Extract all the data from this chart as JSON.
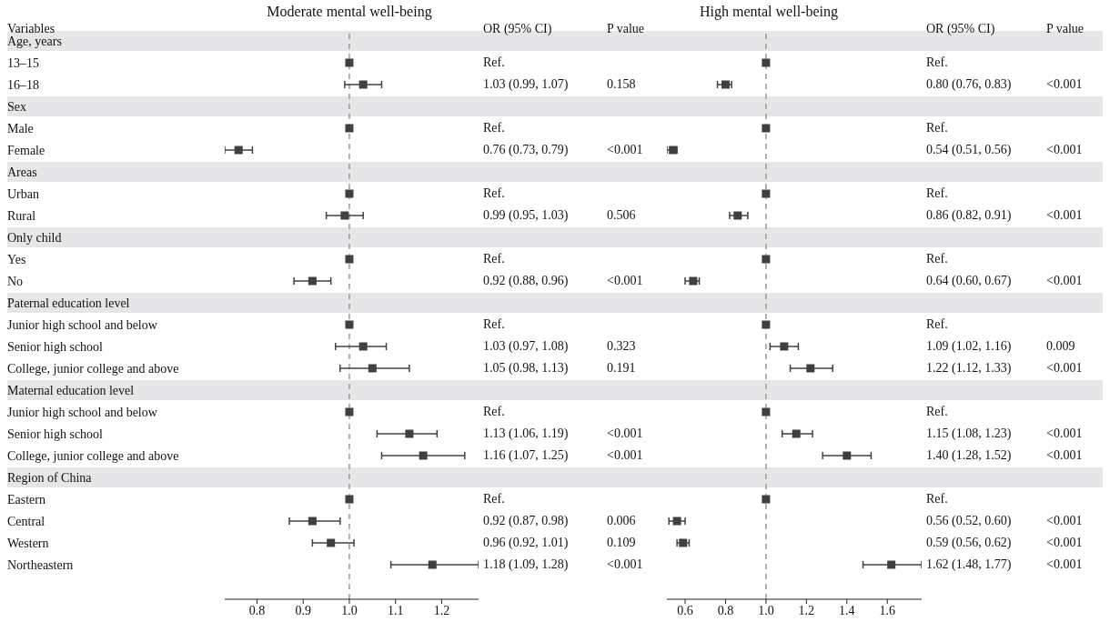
{
  "chart_data": [
    {
      "type": "scatter",
      "orientation": "horizontal",
      "title": "Moderate mental well-being",
      "ylabel": "Variables",
      "marker": "square",
      "categories": [
        "Age, years",
        "13–15",
        "16–18",
        "Sex",
        "Male",
        "Female",
        "Areas",
        "Urban",
        "Rural",
        "Only child",
        "Yes",
        "No",
        "Paternal education level",
        "Junior high school and below",
        "Senior high school",
        "College, junior college and above",
        "Maternal education level",
        "Junior high school and below",
        "Senior high school",
        "College, junior college and above",
        "Region of China",
        "Eastern",
        "Central",
        "Western",
        "Northeastern"
      ],
      "series": [
        {
          "color": "#404040",
          "values": [
            null,
            1,
            1.03,
            null,
            1,
            0.76,
            null,
            1,
            0.99,
            null,
            1,
            0.92,
            null,
            1,
            1.03,
            1.05,
            null,
            1,
            1.13,
            1.16,
            null,
            1,
            0.92,
            0.96,
            1.18
          ],
          "errors": [
            null,
            null,
            [
              0.99,
              1.07
            ],
            null,
            null,
            [
              0.73,
              0.79
            ],
            null,
            null,
            [
              0.95,
              1.03
            ],
            null,
            null,
            [
              0.88,
              0.96
            ],
            null,
            null,
            [
              0.97,
              1.08
            ],
            [
              0.98,
              1.13
            ],
            null,
            null,
            [
              1.06,
              1.19
            ],
            [
              1.07,
              1.25
            ],
            null,
            null,
            [
              0.87,
              0.98
            ],
            [
              0.92,
              1.01
            ],
            [
              1.09,
              1.28
            ]
          ]
        }
      ],
      "xlim": [
        0.73,
        1.28
      ],
      "xticks": [
        0.8,
        0.9,
        {
          "value": 1,
          "label": "1.0"
        },
        1.1,
        1.2
      ],
      "ref_lines": [
        {
          "axis": "x",
          "value": 1,
          "color": "#999999",
          "line_style": "dashed"
        }
      ],
      "annotations": [
        "OR (95% CI)",
        "P value",
        "Ref.",
        "1.03 (0.99, 1.07)",
        "Ref.",
        "0.76 (0.73, 0.79)",
        "Ref.",
        "0.99 (0.95, 1.03)",
        "Ref.",
        "0.92 (0.88, 0.96)",
        "Ref.",
        "1.03 (0.97, 1.08)",
        "1.05 (0.98, 1.13)",
        "Ref.",
        "1.13 (1.06, 1.19)",
        "1.16 (1.07, 1.25)",
        "Ref.",
        "0.92 (0.87, 0.98)",
        "0.96 (0.92, 1.01)",
        "1.18 (1.09, 1.28)",
        "0.158",
        "<0.001",
        "0.506",
        "<0.001",
        "0.323",
        "0.191",
        "<0.001",
        "<0.001",
        "0.006",
        "0.109",
        "<0.001"
      ]
    },
    {
      "type": "scatter",
      "orientation": "horizontal",
      "title": "High mental well-being",
      "marker": "square",
      "tick_labels": "x",
      "series": [
        {
          "color": "#404040",
          "values": [
            null,
            1,
            0.8,
            null,
            1,
            0.54,
            null,
            1,
            0.86,
            null,
            1,
            0.64,
            null,
            1,
            1.09,
            1.22,
            null,
            1,
            1.15,
            1.4,
            null,
            1,
            0.56,
            0.59,
            1.62
          ],
          "errors": [
            null,
            null,
            [
              0.76,
              0.83
            ],
            null,
            null,
            [
              0.51,
              0.56
            ],
            null,
            null,
            [
              0.82,
              0.91
            ],
            null,
            null,
            [
              0.6,
              0.67
            ],
            null,
            null,
            [
              1.02,
              1.16
            ],
            [
              1.12,
              1.33
            ],
            null,
            null,
            [
              1.08,
              1.23
            ],
            [
              1.28,
              1.52
            ],
            null,
            null,
            [
              0.52,
              0.6
            ],
            [
              0.56,
              0.62
            ],
            [
              1.48,
              1.77
            ]
          ]
        }
      ],
      "xlim": [
        0.51,
        1.77
      ],
      "xticks": [
        0.6,
        0.8,
        {
          "value": 1,
          "label": "1.0"
        },
        1.2,
        1.4,
        1.6
      ],
      "ref_lines": [
        {
          "axis": "x",
          "value": 1,
          "color": "#999999",
          "line_style": "dashed"
        }
      ],
      "annotations": [
        "OR (95% CI)",
        "P value",
        "Ref.",
        "0.80 (0.76, 0.83)",
        "Ref.",
        "0.54 (0.51, 0.56)",
        "Ref.",
        "0.86 (0.82, 0.91)",
        "Ref.",
        "0.64 (0.60, 0.67)",
        "Ref.",
        "1.09 (1.02, 1.16)",
        "1.22 (1.12, 1.33)",
        "Ref.",
        "1.15 (1.08, 1.23)",
        "1.40 (1.28, 1.52)",
        "Ref.",
        "0.56 (0.52, 0.60)",
        "0.59 (0.56, 0.62)",
        "1.62 (1.48, 1.77)",
        "<0.001",
        "<0.001",
        "<0.001",
        "<0.001",
        "0.009",
        "<0.001",
        "<0.001",
        "<0.001",
        "<0.001",
        "<0.001",
        "<0.001"
      ]
    }
  ]
}
